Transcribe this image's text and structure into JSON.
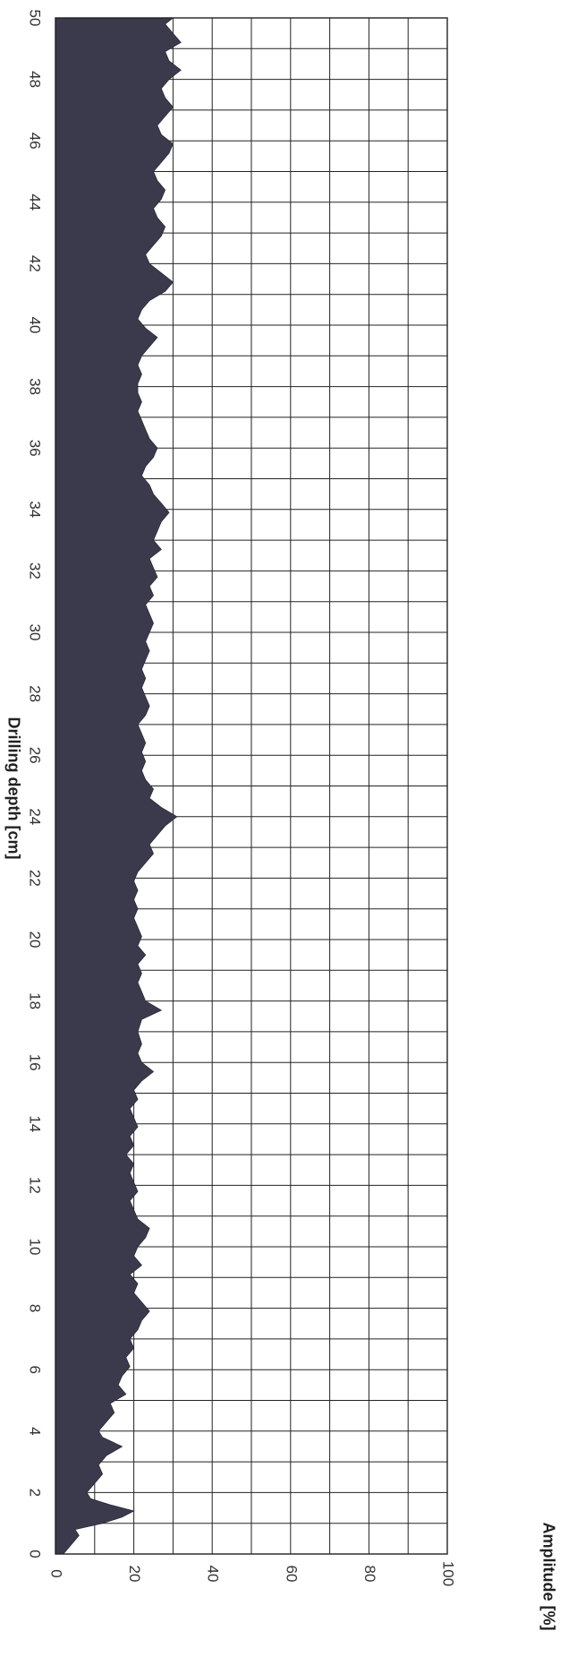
{
  "chart_data": {
    "type": "area",
    "orientation": "rotated",
    "xlabel": "Drilling depth [cm]",
    "ylabel": "Amplitude [%]",
    "xlim": [
      0,
      50
    ],
    "ylim": [
      0,
      100
    ],
    "x_ticks": [
      0,
      2,
      4,
      6,
      8,
      10,
      12,
      14,
      16,
      18,
      20,
      22,
      24,
      26,
      28,
      30,
      32,
      34,
      36,
      38,
      40,
      42,
      44,
      46,
      48,
      50
    ],
    "y_ticks": [
      0,
      20,
      40,
      60,
      80,
      100
    ],
    "grid": true,
    "series": [
      {
        "color": "#3a3a4c",
        "points": [
          [
            0,
            2
          ],
          [
            0.3,
            4
          ],
          [
            0.6,
            6
          ],
          [
            0.8,
            5
          ],
          [
            1.0,
            12
          ],
          [
            1.2,
            17
          ],
          [
            1.4,
            20
          ],
          [
            1.6,
            14
          ],
          [
            1.8,
            9
          ],
          [
            2.0,
            8
          ],
          [
            2.3,
            10
          ],
          [
            2.6,
            12
          ],
          [
            2.9,
            11
          ],
          [
            3.2,
            13
          ],
          [
            3.5,
            17
          ],
          [
            3.8,
            12
          ],
          [
            4.0,
            11
          ],
          [
            4.3,
            13
          ],
          [
            4.6,
            15
          ],
          [
            4.9,
            14
          ],
          [
            5.2,
            18
          ],
          [
            5.5,
            16
          ],
          [
            5.8,
            17
          ],
          [
            6.1,
            19
          ],
          [
            6.4,
            18
          ],
          [
            6.7,
            20
          ],
          [
            7.0,
            19
          ],
          [
            7.3,
            21
          ],
          [
            7.6,
            22
          ],
          [
            7.9,
            24
          ],
          [
            8.2,
            22
          ],
          [
            8.5,
            20
          ],
          [
            8.8,
            21
          ],
          [
            9.1,
            19
          ],
          [
            9.4,
            22
          ],
          [
            9.7,
            20
          ],
          [
            10.0,
            21
          ],
          [
            10.3,
            23
          ],
          [
            10.6,
            24
          ],
          [
            10.9,
            21
          ],
          [
            11.2,
            20
          ],
          [
            11.5,
            19
          ],
          [
            11.8,
            21
          ],
          [
            12.1,
            20
          ],
          [
            12.4,
            19
          ],
          [
            12.7,
            20
          ],
          [
            13.0,
            18
          ],
          [
            13.3,
            20
          ],
          [
            13.6,
            19
          ],
          [
            13.9,
            21
          ],
          [
            14.2,
            20
          ],
          [
            14.5,
            19
          ],
          [
            14.8,
            21
          ],
          [
            15.1,
            20
          ],
          [
            15.4,
            22
          ],
          [
            15.7,
            25
          ],
          [
            16.0,
            22
          ],
          [
            16.3,
            21
          ],
          [
            16.6,
            22
          ],
          [
            17.0,
            21
          ],
          [
            17.4,
            22
          ],
          [
            17.7,
            27
          ],
          [
            18.0,
            23
          ],
          [
            18.3,
            22
          ],
          [
            18.6,
            21
          ],
          [
            18.9,
            22
          ],
          [
            19.2,
            21
          ],
          [
            19.5,
            23
          ],
          [
            19.8,
            21
          ],
          [
            20.1,
            22
          ],
          [
            20.4,
            21
          ],
          [
            20.7,
            20
          ],
          [
            21.0,
            21
          ],
          [
            21.3,
            20
          ],
          [
            21.6,
            21
          ],
          [
            21.9,
            20
          ],
          [
            22.2,
            21
          ],
          [
            22.5,
            23
          ],
          [
            22.8,
            25
          ],
          [
            23.1,
            24
          ],
          [
            23.4,
            26
          ],
          [
            23.7,
            28
          ],
          [
            24.0,
            31
          ],
          [
            24.3,
            27
          ],
          [
            24.6,
            24
          ],
          [
            24.9,
            25
          ],
          [
            25.2,
            23
          ],
          [
            25.5,
            22
          ],
          [
            25.8,
            23
          ],
          [
            26.1,
            22
          ],
          [
            26.4,
            23
          ],
          [
            26.7,
            22
          ],
          [
            27.0,
            21
          ],
          [
            27.3,
            23
          ],
          [
            27.6,
            24
          ],
          [
            27.9,
            23
          ],
          [
            28.2,
            22
          ],
          [
            28.5,
            23
          ],
          [
            28.8,
            22
          ],
          [
            29.1,
            23
          ],
          [
            29.4,
            24
          ],
          [
            29.7,
            23
          ],
          [
            30.0,
            24
          ],
          [
            30.3,
            25
          ],
          [
            30.6,
            24
          ],
          [
            30.9,
            23
          ],
          [
            31.2,
            25
          ],
          [
            31.5,
            24
          ],
          [
            31.8,
            26
          ],
          [
            32.1,
            25
          ],
          [
            32.4,
            24
          ],
          [
            32.7,
            27
          ],
          [
            33.0,
            25
          ],
          [
            33.3,
            26
          ],
          [
            33.6,
            27
          ],
          [
            33.9,
            29
          ],
          [
            34.2,
            27
          ],
          [
            34.5,
            25
          ],
          [
            34.8,
            24
          ],
          [
            35.1,
            22
          ],
          [
            35.4,
            23
          ],
          [
            35.7,
            25
          ],
          [
            36.0,
            26
          ],
          [
            36.3,
            24
          ],
          [
            36.6,
            23
          ],
          [
            36.9,
            22
          ],
          [
            37.2,
            21
          ],
          [
            37.5,
            22
          ],
          [
            37.8,
            21
          ],
          [
            38.1,
            21
          ],
          [
            38.4,
            22
          ],
          [
            38.7,
            21
          ],
          [
            39.0,
            22
          ],
          [
            39.3,
            24
          ],
          [
            39.6,
            26
          ],
          [
            39.9,
            23
          ],
          [
            40.2,
            21
          ],
          [
            40.5,
            22
          ],
          [
            40.8,
            24
          ],
          [
            41.1,
            28
          ],
          [
            41.4,
            30
          ],
          [
            41.7,
            27
          ],
          [
            42.0,
            24
          ],
          [
            42.3,
            23
          ],
          [
            42.6,
            25
          ],
          [
            42.9,
            27
          ],
          [
            43.2,
            28
          ],
          [
            43.5,
            26
          ],
          [
            43.8,
            25
          ],
          [
            44.1,
            27
          ],
          [
            44.4,
            28
          ],
          [
            44.7,
            26
          ],
          [
            45.0,
            25
          ],
          [
            45.3,
            27
          ],
          [
            45.6,
            29
          ],
          [
            45.9,
            30
          ],
          [
            46.2,
            27
          ],
          [
            46.5,
            26
          ],
          [
            46.8,
            28
          ],
          [
            47.1,
            30
          ],
          [
            47.4,
            28
          ],
          [
            47.7,
            27
          ],
          [
            48.0,
            29
          ],
          [
            48.3,
            32
          ],
          [
            48.6,
            29
          ],
          [
            48.9,
            28
          ],
          [
            49.2,
            32
          ],
          [
            49.5,
            30
          ],
          [
            49.8,
            28
          ],
          [
            50.0,
            30
          ]
        ]
      }
    ]
  }
}
